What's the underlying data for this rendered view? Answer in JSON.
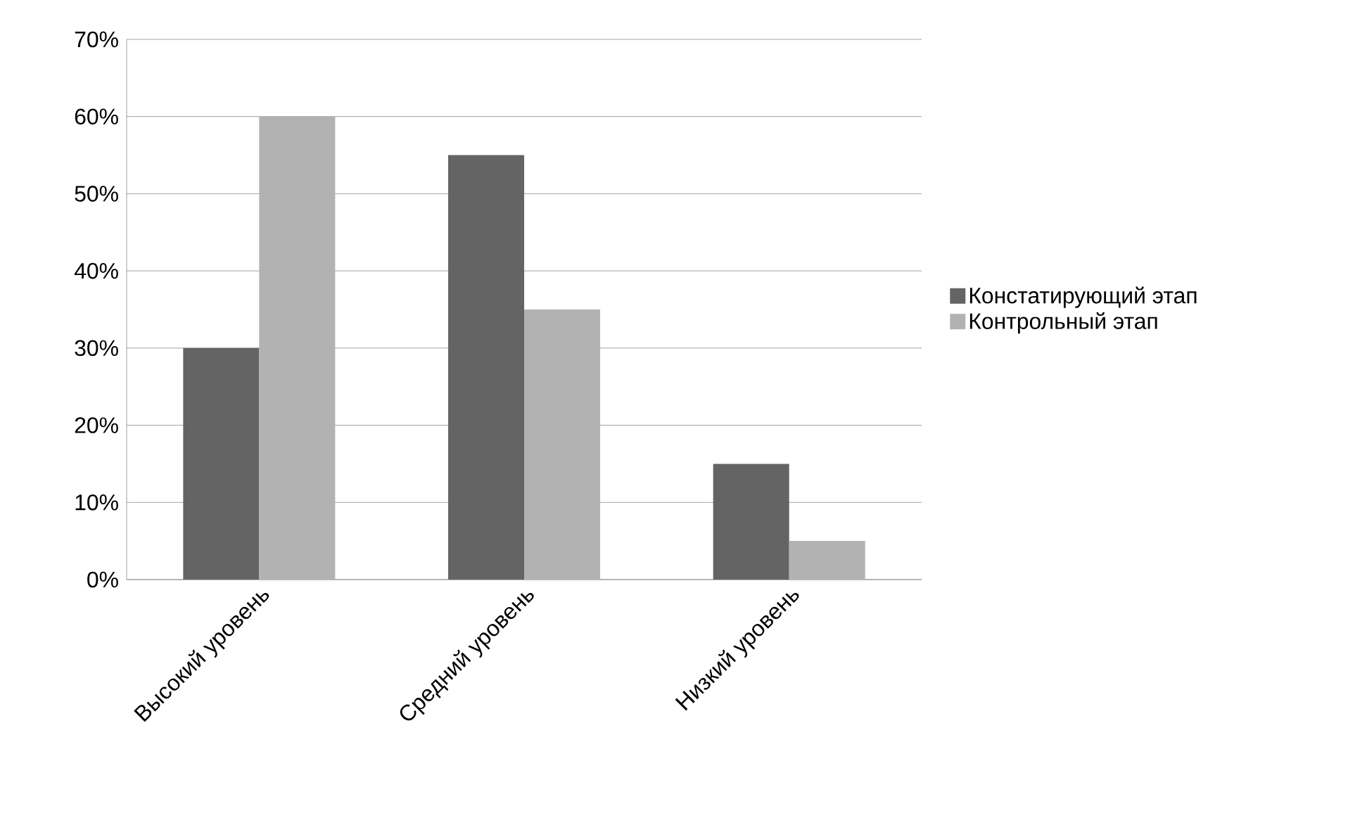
{
  "chart_data": {
    "type": "bar",
    "categories": [
      "Высокий уровень",
      "Средний уровень",
      "Низкий уровень"
    ],
    "series": [
      {
        "name": "Констатирующий этап",
        "color": "#646464",
        "values": [
          30,
          55,
          15
        ]
      },
      {
        "name": "Контрольный этап",
        "color": "#b2b2b2",
        "values": [
          60,
          35,
          5
        ]
      }
    ],
    "ylim": [
      0,
      70
    ],
    "yticks": [
      {
        "value": 0,
        "label": "0%"
      },
      {
        "value": 10,
        "label": "10%"
      },
      {
        "value": 20,
        "label": "20%"
      },
      {
        "value": 30,
        "label": "30%"
      },
      {
        "value": 40,
        "label": "40%"
      },
      {
        "value": 50,
        "label": "50%"
      },
      {
        "value": 60,
        "label": "60%"
      },
      {
        "value": 70,
        "label": "70%"
      }
    ],
    "grid": "y",
    "legend": "right"
  }
}
